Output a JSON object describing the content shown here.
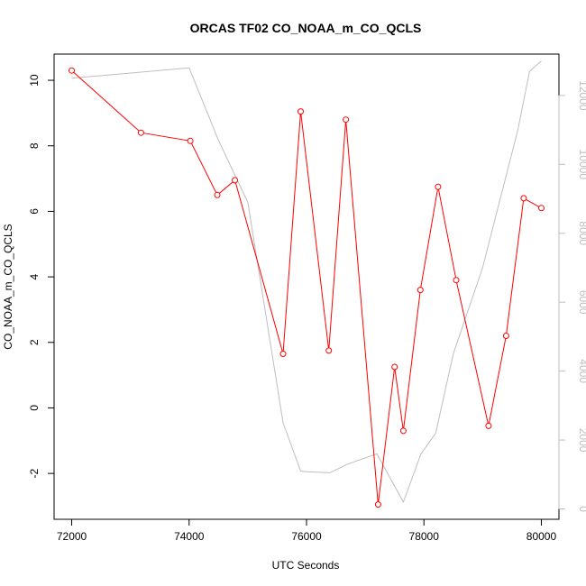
{
  "chart_data": {
    "type": "line",
    "title": "ORCAS TF02 CO_NOAA_m_CO_QCLS",
    "xlabel": "UTC Seconds",
    "ylabel": "CO_NOAA_m_CO_QCLS",
    "xlim": [
      71700,
      80300
    ],
    "ylim": [
      -3.4,
      10.8
    ],
    "y2lim": [
      -300,
      13200
    ],
    "x_ticks": [
      72000,
      74000,
      76000,
      78000,
      80000
    ],
    "y_ticks": [
      -2,
      0,
      2,
      4,
      6,
      8,
      10
    ],
    "y2_ticks": [
      0,
      2000,
      4000,
      6000,
      8000,
      10000,
      12000
    ],
    "x_tick_labels": [
      "72000",
      "74000",
      "76000",
      "78000",
      "80000"
    ],
    "y_tick_labels": [
      "-2",
      "0",
      "2",
      "4",
      "6",
      "8",
      "10"
    ],
    "y2_tick_labels": [
      "0",
      "2000",
      "4000",
      "6000",
      "8000",
      "10000",
      "12000"
    ],
    "colors": {
      "series": "#ff0000",
      "secondary": "#bebebe",
      "axis": "#000000"
    },
    "series": [
      {
        "axis": "left",
        "marker": "open-circle",
        "x": [
          72000,
          73180,
          74020,
          74480,
          74780,
          75600,
          75900,
          76380,
          76670,
          77220,
          77500,
          77650,
          77940,
          78240,
          78550,
          79100,
          79400,
          79700,
          80000
        ],
        "values": [
          10.3,
          8.4,
          8.15,
          6.5,
          6.95,
          1.65,
          9.05,
          1.75,
          8.8,
          -2.95,
          1.25,
          -0.7,
          3.6,
          6.75,
          3.9,
          -0.55,
          2.2,
          6.4,
          6.1
        ]
      },
      {
        "axis": "right",
        "marker": "none",
        "x": [
          72000,
          74000,
          74500,
          75000,
          75600,
          75900,
          76000,
          76400,
          76700,
          77200,
          77650,
          77950,
          78200,
          78500,
          79000,
          79600,
          79800,
          80000
        ],
        "values": [
          12500,
          12800,
          10700,
          8900,
          2500,
          1100,
          1080,
          1050,
          1300,
          1600,
          200,
          1600,
          2200,
          4500,
          7000,
          11000,
          12700,
          13000
        ]
      }
    ]
  }
}
